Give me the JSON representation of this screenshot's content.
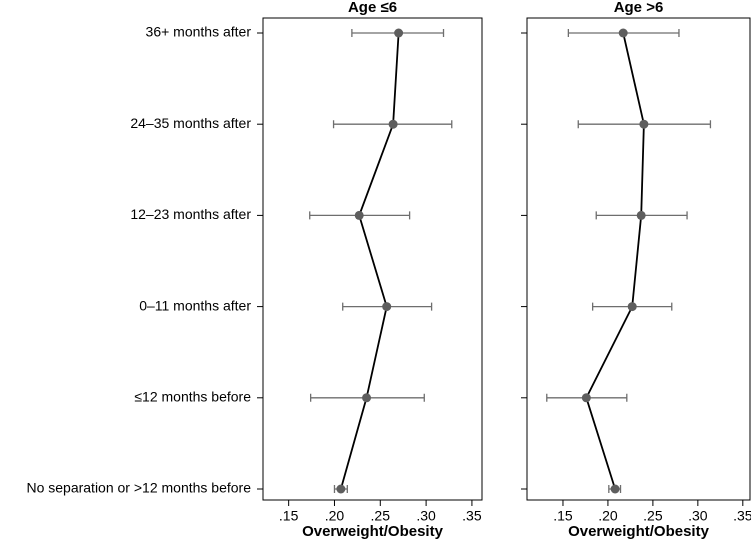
{
  "chart_data": [
    {
      "type": "dot",
      "title": "Age ≤6",
      "xlabel": "Overweight/Obesity",
      "categories": [
        "36+ months after",
        "24–35 months after",
        "12–23 months after",
        "0–11 months after",
        "≤12 months before",
        "No separation or >12 months before"
      ],
      "values": [
        0.27,
        0.264,
        0.227,
        0.257,
        0.235,
        0.207
      ],
      "lower": [
        0.219,
        0.199,
        0.173,
        0.209,
        0.174,
        0.2
      ],
      "upper": [
        0.319,
        0.328,
        0.282,
        0.306,
        0.298,
        0.214
      ],
      "color": "#5e5e5e",
      "line_color": "#000000",
      "xlim": [
        0.122,
        0.361
      ],
      "xticks": [
        {
          "value": 0.15,
          "label": ".15"
        },
        {
          "value": 0.2,
          "label": ".20"
        },
        {
          "value": 0.25,
          "label": ".25"
        },
        {
          "value": 0.3,
          "label": ".30"
        },
        {
          "value": 0.35,
          "label": ".35"
        }
      ]
    },
    {
      "type": "dot",
      "title": "Age >6",
      "xlabel": "Overweight/Obesity",
      "values": [
        0.217,
        0.24,
        0.237,
        0.227,
        0.176,
        0.208
      ],
      "lower": [
        0.156,
        0.167,
        0.187,
        0.183,
        0.132,
        0.201
      ],
      "upper": [
        0.279,
        0.314,
        0.288,
        0.271,
        0.221,
        0.214
      ],
      "color": "#5e5e5e",
      "line_color": "#000000",
      "xlim": [
        0.11,
        0.358
      ],
      "xticks": [
        {
          "value": 0.15,
          "label": ".15"
        },
        {
          "value": 0.2,
          "label": ".20"
        },
        {
          "value": 0.25,
          "label": ".25"
        },
        {
          "value": 0.3,
          "label": ".30"
        },
        {
          "value": 0.35,
          "label": ".35"
        }
      ]
    }
  ]
}
